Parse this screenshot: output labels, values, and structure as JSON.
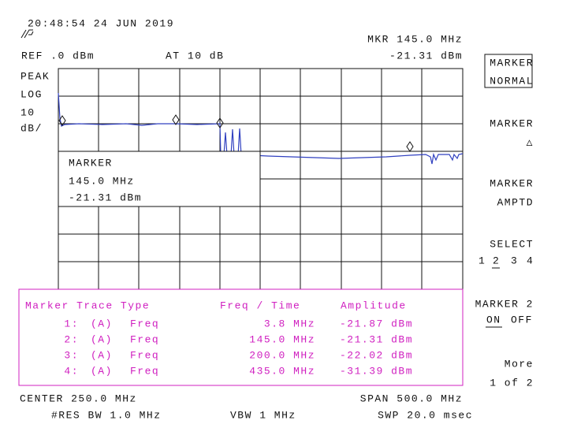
{
  "header": {
    "timestamp": "20:48:54  24 JUN 2019",
    "marker_freq": "MKR 145.0 MHz",
    "ref": "REF .0 dBm",
    "atten": "AT 10 dB",
    "marker_amp": "-21.31 dBm"
  },
  "left_labels": [
    "PEAK",
    "LOG",
    "10",
    "dB/"
  ],
  "marker_box": {
    "title": "MARKER",
    "freq": "145.0 MHz",
    "amp": "-21.31 dBm"
  },
  "table": {
    "headers": [
      "Marker Trace Type",
      "Freq / Time",
      "Amplitude"
    ],
    "rows": [
      [
        "1:",
        "(A)",
        "Freq",
        "3.8 MHz",
        "-21.87 dBm"
      ],
      [
        "2:",
        "(A)",
        "Freq",
        "145.0 MHz",
        "-21.31 dBm"
      ],
      [
        "3:",
        "(A)",
        "Freq",
        "200.0 MHz",
        "-22.02 dBm"
      ],
      [
        "4:",
        "(A)",
        "Freq",
        "435.0 MHz",
        "-31.39 dBm"
      ]
    ]
  },
  "footer": {
    "center": "CENTER 250.0 MHz",
    "span": "SPAN 500.0 MHz",
    "res_bw": "#RES BW 1.0 MHz",
    "vbw": "VBW 1 MHz",
    "sweep": "SWP 20.0 msec"
  },
  "softkeys": {
    "k1": [
      "MARKER",
      "NORMAL"
    ],
    "k2": [
      "MARKER",
      "△"
    ],
    "k3": [
      "MARKER",
      "AMPTD"
    ],
    "k4": {
      "label": "SELECT",
      "options": [
        "1",
        "2",
        "3",
        "4"
      ]
    },
    "k5": {
      "label": "MARKER 2",
      "on": "ON",
      "off": "OFF"
    },
    "k6": [
      "More",
      "1 of 2"
    ]
  }
}
